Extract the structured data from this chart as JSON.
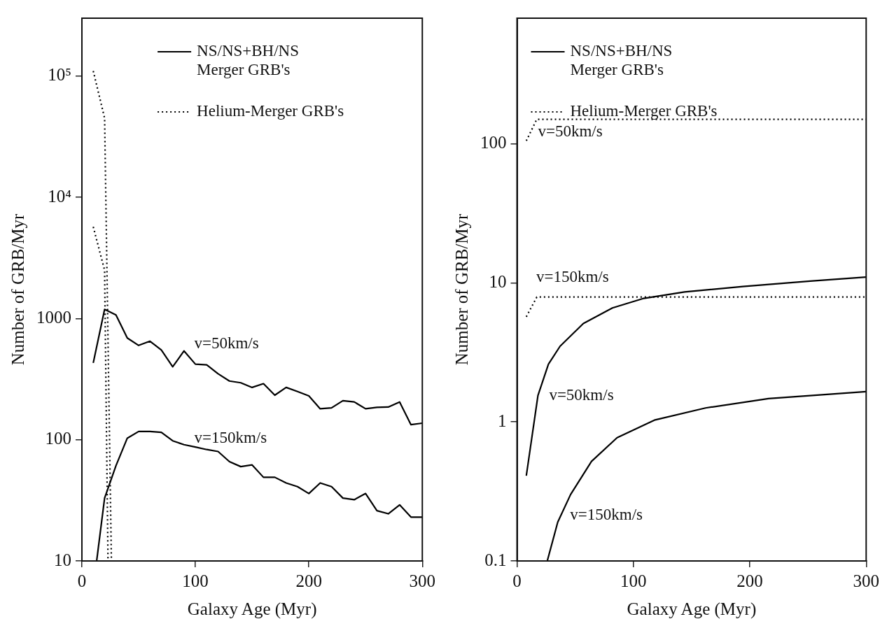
{
  "chart_data": [
    {
      "type": "line",
      "xlabel": "Galaxy Age (Myr)",
      "ylabel": "Number of GRB/Myr",
      "xlim": [
        0,
        300
      ],
      "xticks": [
        0,
        100,
        200,
        300
      ],
      "ylim": [
        10,
        300000
      ],
      "yticks": [
        10,
        100,
        1000,
        {
          "value": 10000,
          "label": "10⁴"
        },
        {
          "value": 100000,
          "label": "10⁵"
        }
      ],
      "log": "y",
      "grid": false,
      "legend": "top",
      "marker": "none",
      "series": [
        {
          "name": "NS/NS+BH/NS\nMerger GRB's",
          "color": "#000000",
          "line_style": "solid",
          "x": [
            10,
            20,
            30,
            40,
            50,
            60,
            70,
            80,
            90,
            100,
            110,
            120,
            130,
            140,
            150,
            160,
            170,
            180,
            190,
            200,
            210,
            220,
            230,
            240,
            250,
            260,
            270,
            280,
            290,
            300
          ],
          "values": [
            430,
            1190,
            1070,
            690,
            600,
            650,
            550,
            400,
            540,
            420,
            415,
            350,
            305,
            295,
            270,
            290,
            233,
            270,
            250,
            230,
            180,
            183,
            210,
            205,
            180,
            185,
            186,
            205,
            133,
            137
          ]
        },
        {
          "color": "#000000",
          "line_style": "solid",
          "x": [
            13,
            20,
            30,
            40,
            50,
            60,
            70,
            80,
            90,
            100,
            110,
            120,
            130,
            140,
            150,
            160,
            170,
            180,
            190,
            200,
            210,
            220,
            230,
            240,
            250,
            260,
            270,
            280,
            290,
            300
          ],
          "values": [
            10,
            33,
            61,
            103,
            117,
            117,
            115,
            98,
            91,
            87,
            83,
            80,
            66,
            60,
            62,
            49,
            49,
            44,
            41,
            36,
            44,
            41,
            33,
            32,
            36,
            26,
            24.5,
            29,
            23,
            23
          ]
        },
        {
          "name": "Helium-Merger GRB's",
          "color": "#000000",
          "line_style": "dotted",
          "x": [
            10,
            20,
            26
          ],
          "values": [
            110000,
            45000,
            10
          ]
        },
        {
          "color": "#000000",
          "line_style": "dotted",
          "x": [
            10,
            20,
            23
          ],
          "values": [
            5700,
            2500,
            10
          ]
        }
      ],
      "annotations": [
        "v=50km/s",
        "v=150km/s"
      ]
    },
    {
      "type": "line",
      "xlabel": "Galaxy Age (Myr)",
      "ylabel": "Number of GRB/Myr",
      "xlim": [
        0,
        300
      ],
      "xticks": [
        0,
        100,
        200,
        300
      ],
      "ylim": [
        0.1,
        800
      ],
      "yticks": [
        0.1,
        1,
        10,
        100
      ],
      "log": "y",
      "grid": false,
      "legend": "top left",
      "marker": "none",
      "series": [
        {
          "name": "NS/NS+BH/NS\nMerger GRB's",
          "color": "#000000",
          "line_style": "solid",
          "x": [
            8,
            18,
            27,
            37,
            57,
            82,
            108,
            144,
            194,
            252,
            300
          ],
          "values": [
            0.41,
            1.55,
            2.6,
            3.5,
            5.1,
            6.6,
            7.7,
            8.6,
            9.4,
            10.3,
            11
          ]
        },
        {
          "color": "#000000",
          "line_style": "solid",
          "x": [
            26,
            35,
            46,
            64,
            86,
            118,
            162,
            216,
            300
          ],
          "values": [
            0.1,
            0.19,
            0.3,
            0.52,
            0.77,
            1.03,
            1.26,
            1.47,
            1.65
          ]
        },
        {
          "name": "Helium-Merger GRB's",
          "color": "#000000",
          "line_style": "dotted",
          "x": [
            8,
            17,
            300
          ],
          "values": [
            105,
            150,
            150
          ]
        },
        {
          "color": "#000000",
          "line_style": "dotted",
          "x": [
            8,
            17,
            300
          ],
          "values": [
            5.7,
            7.9,
            7.9
          ]
        }
      ],
      "annotations": [
        "v=50km/s",
        "v=150km/s",
        "v=50km/s",
        "v=150km/s"
      ]
    }
  ]
}
